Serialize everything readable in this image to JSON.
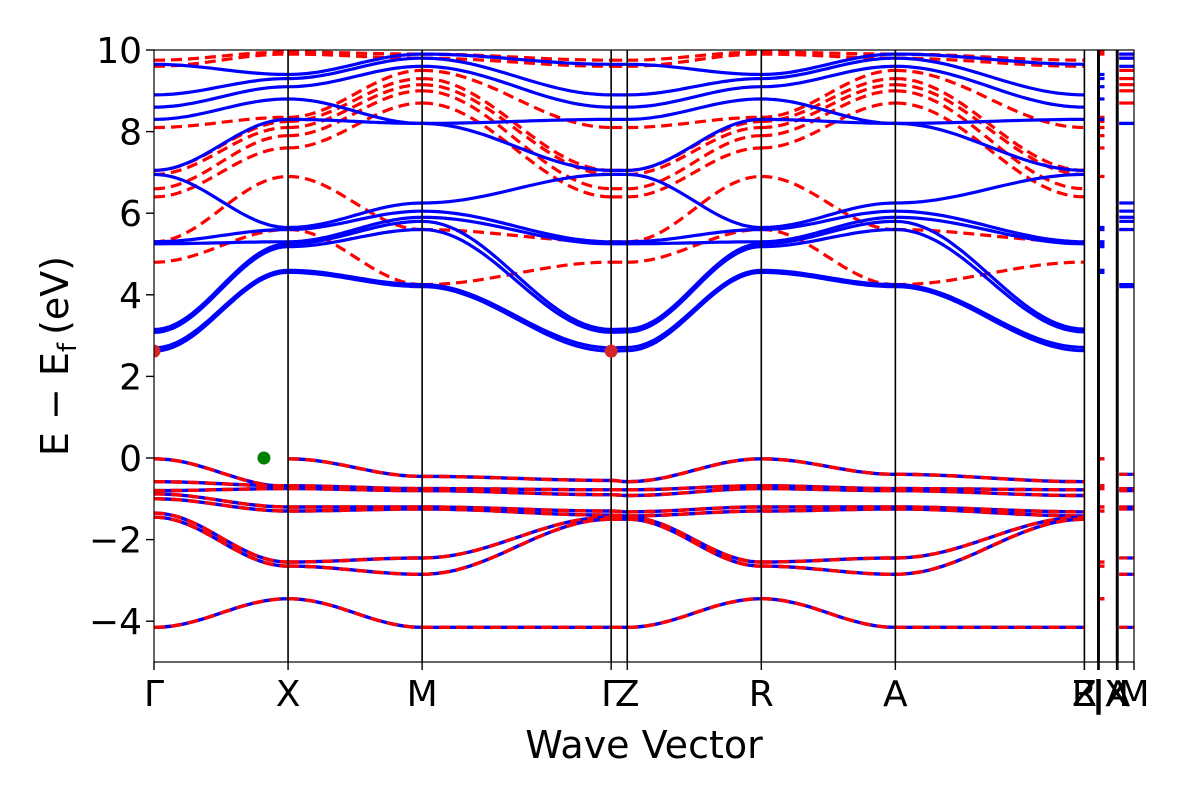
{
  "chart_data": {
    "type": "line",
    "title": "",
    "xlabel": "Wave Vector",
    "ylabel": "E − E",
    "ylabel_sub": "f",
    "ylabel_unit": "(eV)",
    "ylim": [
      -5,
      10
    ],
    "yticks": [
      -4,
      -2,
      0,
      2,
      4,
      6,
      8,
      10
    ],
    "ytick_labels": [
      "−4",
      "−2",
      "0",
      "2",
      "4",
      "6",
      "8",
      "10"
    ],
    "xlim": [
      0,
      7.31
    ],
    "kpath_ticks": [
      {
        "label": "Γ",
        "x": 0
      },
      {
        "label": "X",
        "x": 1.0
      },
      {
        "label": "M",
        "x": 2.0
      },
      {
        "label": "Γ",
        "x": 3.41
      },
      {
        "label": "Z",
        "x": 3.53
      },
      {
        "label": "R",
        "x": 4.53
      },
      {
        "label": "A",
        "x": 5.53
      },
      {
        "label": "Z",
        "x": 6.94
      },
      {
        "label": "R",
        "x": 6.94
      },
      {
        "label": "|",
        "x": 7.04
      },
      {
        "label": "|",
        "x": 7.05
      },
      {
        "label": "X",
        "x": 7.18
      },
      {
        "label": "A",
        "x": 7.19
      },
      {
        "label": "M",
        "x": 7.31
      }
    ],
    "line_colors": {
      "spin_up": "#0000ff",
      "spin_down": "#ff0000"
    },
    "markers": [
      {
        "x": 0.82,
        "y": 0.0,
        "color": "#008000"
      },
      {
        "x": 0.0,
        "y": 2.62,
        "color": "#d62728"
      },
      {
        "x": 3.41,
        "y": 2.62,
        "color": "#d62728"
      }
    ],
    "segments": [
      {
        "x0": 0,
        "x1": 1.0,
        "valence": [
          [
            -0.02,
            -0.7
          ],
          [
            -0.58,
            -0.68
          ],
          [
            -0.8,
            -0.75
          ],
          [
            -0.88,
            -1.2
          ],
          [
            -1.0,
            -1.3
          ],
          [
            -1.35,
            -2.55
          ],
          [
            -1.45,
            -2.65
          ],
          [
            -4.15,
            -3.45
          ]
        ],
        "cond_up": [
          [
            2.62,
            4.55
          ],
          [
            2.7,
            4.6
          ],
          [
            3.08,
            5.18
          ],
          [
            3.15,
            5.25
          ],
          [
            5.25,
            5.3
          ],
          [
            5.3,
            5.6
          ],
          [
            6.95,
            5.65
          ],
          [
            7.05,
            8.3
          ],
          [
            8.3,
            8.8
          ],
          [
            8.6,
            9.1
          ],
          [
            8.9,
            9.3
          ],
          [
            9.65,
            9.4
          ]
        ],
        "cond_dn": [
          [
            4.8,
            5.6
          ],
          [
            5.3,
            6.9
          ],
          [
            6.4,
            7.6
          ],
          [
            6.6,
            7.9
          ],
          [
            6.95,
            8.1
          ],
          [
            7.05,
            8.25
          ],
          [
            8.1,
            8.35
          ],
          [
            9.6,
            9.9
          ],
          [
            9.75,
            9.95
          ]
        ]
      },
      {
        "x0": 1.0,
        "x1": 2.0,
        "valence": [
          [
            -0.02,
            -0.45
          ],
          [
            -0.68,
            -0.75
          ],
          [
            -0.75,
            -0.8
          ],
          [
            -1.2,
            -1.2
          ],
          [
            -1.3,
            -1.25
          ],
          [
            -2.55,
            -2.45
          ],
          [
            -2.65,
            -2.85
          ],
          [
            -3.45,
            -4.15
          ]
        ],
        "cond_up": [
          [
            4.55,
            4.2
          ],
          [
            4.6,
            4.25
          ],
          [
            5.18,
            5.6
          ],
          [
            5.25,
            5.8
          ],
          [
            5.3,
            5.9
          ],
          [
            5.6,
            6.05
          ],
          [
            5.65,
            6.25
          ],
          [
            8.3,
            8.2
          ],
          [
            8.8,
            8.2
          ],
          [
            9.1,
            9.6
          ],
          [
            9.3,
            9.8
          ],
          [
            9.4,
            9.9
          ]
        ],
        "cond_dn": [
          [
            5.6,
            4.25
          ],
          [
            6.9,
            5.6
          ],
          [
            7.6,
            8.7
          ],
          [
            7.9,
            9.0
          ],
          [
            8.1,
            9.15
          ],
          [
            8.25,
            9.3
          ],
          [
            8.35,
            9.5
          ],
          [
            9.9,
            9.8
          ],
          [
            9.95,
            9.9
          ]
        ]
      },
      {
        "x0": 2.0,
        "x1": 3.41,
        "valence": [
          [
            -0.45,
            -0.55
          ],
          [
            -0.75,
            -0.78
          ],
          [
            -0.8,
            -0.9
          ],
          [
            -1.2,
            -1.3
          ],
          [
            -1.25,
            -1.4
          ],
          [
            -2.45,
            -1.45
          ],
          [
            -2.85,
            -1.5
          ],
          [
            -4.15,
            -4.15
          ]
        ],
        "cond_up": [
          [
            4.2,
            2.62
          ],
          [
            4.25,
            2.7
          ],
          [
            5.6,
            3.08
          ],
          [
            5.8,
            3.15
          ],
          [
            5.9,
            5.25
          ],
          [
            6.05,
            5.3
          ],
          [
            6.25,
            6.95
          ],
          [
            8.2,
            7.05
          ],
          [
            8.2,
            8.3
          ],
          [
            9.6,
            8.6
          ],
          [
            9.8,
            8.9
          ],
          [
            9.9,
            9.65
          ]
        ],
        "cond_dn": [
          [
            4.25,
            4.8
          ],
          [
            5.6,
            5.3
          ],
          [
            8.7,
            6.4
          ],
          [
            9.0,
            6.6
          ],
          [
            9.15,
            6.95
          ],
          [
            9.3,
            7.05
          ],
          [
            9.5,
            8.1
          ],
          [
            9.8,
            9.6
          ],
          [
            9.9,
            9.75
          ]
        ]
      },
      {
        "x0": 3.41,
        "x1": 3.53,
        "valence": [
          [
            -0.55,
            -0.58
          ],
          [
            -0.78,
            -0.78
          ],
          [
            -0.9,
            -0.92
          ],
          [
            -1.3,
            -1.32
          ],
          [
            -1.4,
            -1.42
          ],
          [
            -1.45,
            -1.45
          ],
          [
            -1.5,
            -1.5
          ],
          [
            -4.15,
            -4.15
          ]
        ],
        "cond_up": [
          [
            2.62,
            2.63
          ],
          [
            2.7,
            2.71
          ],
          [
            3.08,
            3.09
          ],
          [
            3.15,
            3.16
          ],
          [
            5.25,
            5.25
          ],
          [
            5.3,
            5.3
          ],
          [
            6.95,
            6.95
          ],
          [
            7.05,
            7.05
          ],
          [
            8.3,
            8.3
          ],
          [
            8.6,
            8.6
          ],
          [
            8.9,
            8.9
          ],
          [
            9.65,
            9.65
          ]
        ],
        "cond_dn": [
          [
            4.8,
            4.8
          ],
          [
            5.3,
            5.3
          ],
          [
            6.4,
            6.4
          ],
          [
            6.6,
            6.6
          ],
          [
            6.95,
            6.95
          ],
          [
            7.05,
            7.05
          ],
          [
            8.1,
            8.1
          ],
          [
            9.6,
            9.6
          ],
          [
            9.75,
            9.75
          ]
        ]
      },
      {
        "x0": 3.53,
        "x1": 4.53,
        "valence": [
          [
            -0.58,
            -0.02
          ],
          [
            -0.78,
            -0.68
          ],
          [
            -0.92,
            -0.75
          ],
          [
            -1.32,
            -1.2
          ],
          [
            -1.42,
            -1.3
          ],
          [
            -1.45,
            -2.55
          ],
          [
            -1.5,
            -2.65
          ],
          [
            -4.15,
            -3.45
          ]
        ],
        "cond_up": [
          [
            2.63,
            4.55
          ],
          [
            2.71,
            4.6
          ],
          [
            3.09,
            5.18
          ],
          [
            3.16,
            5.25
          ],
          [
            5.25,
            5.3
          ],
          [
            5.3,
            5.6
          ],
          [
            6.95,
            5.65
          ],
          [
            7.05,
            8.3
          ],
          [
            8.3,
            8.8
          ],
          [
            8.6,
            9.1
          ],
          [
            8.9,
            9.3
          ],
          [
            9.65,
            9.4
          ]
        ],
        "cond_dn": [
          [
            4.8,
            5.6
          ],
          [
            5.3,
            6.9
          ],
          [
            6.4,
            7.6
          ],
          [
            6.6,
            7.9
          ],
          [
            6.95,
            8.1
          ],
          [
            7.05,
            8.25
          ],
          [
            8.1,
            8.35
          ],
          [
            9.6,
            9.9
          ],
          [
            9.75,
            9.95
          ]
        ]
      },
      {
        "x0": 4.53,
        "x1": 5.53,
        "valence": [
          [
            -0.02,
            -0.4
          ],
          [
            -0.68,
            -0.75
          ],
          [
            -0.75,
            -0.8
          ],
          [
            -1.2,
            -1.2
          ],
          [
            -1.3,
            -1.25
          ],
          [
            -2.55,
            -2.45
          ],
          [
            -2.65,
            -2.85
          ],
          [
            -3.45,
            -4.15
          ]
        ],
        "cond_up": [
          [
            4.55,
            4.2
          ],
          [
            4.6,
            4.25
          ],
          [
            5.18,
            5.6
          ],
          [
            5.25,
            5.8
          ],
          [
            5.3,
            5.9
          ],
          [
            5.6,
            6.05
          ],
          [
            5.65,
            6.25
          ],
          [
            8.3,
            8.2
          ],
          [
            8.8,
            8.2
          ],
          [
            9.1,
            9.6
          ],
          [
            9.3,
            9.8
          ],
          [
            9.4,
            9.9
          ]
        ],
        "cond_dn": [
          [
            5.6,
            4.25
          ],
          [
            6.9,
            5.6
          ],
          [
            7.6,
            8.7
          ],
          [
            7.9,
            9.0
          ],
          [
            8.1,
            9.15
          ],
          [
            8.25,
            9.3
          ],
          [
            8.35,
            9.5
          ],
          [
            9.9,
            9.8
          ],
          [
            9.95,
            9.9
          ]
        ]
      },
      {
        "x0": 5.53,
        "x1": 6.94,
        "valence": [
          [
            -0.4,
            -0.58
          ],
          [
            -0.75,
            -0.78
          ],
          [
            -0.8,
            -0.92
          ],
          [
            -1.2,
            -1.32
          ],
          [
            -1.25,
            -1.42
          ],
          [
            -2.45,
            -1.45
          ],
          [
            -2.85,
            -1.5
          ],
          [
            -4.15,
            -4.15
          ]
        ],
        "cond_up": [
          [
            4.2,
            2.63
          ],
          [
            4.25,
            2.71
          ],
          [
            5.6,
            3.09
          ],
          [
            5.8,
            3.16
          ],
          [
            5.9,
            5.25
          ],
          [
            6.05,
            5.3
          ],
          [
            6.25,
            6.95
          ],
          [
            8.2,
            7.05
          ],
          [
            8.2,
            8.3
          ],
          [
            9.6,
            8.6
          ],
          [
            9.8,
            8.9
          ],
          [
            9.9,
            9.65
          ]
        ],
        "cond_dn": [
          [
            4.25,
            4.8
          ],
          [
            5.6,
            5.3
          ],
          [
            8.7,
            6.4
          ],
          [
            9.0,
            6.6
          ],
          [
            9.15,
            6.95
          ],
          [
            9.3,
            7.05
          ],
          [
            9.5,
            8.1
          ],
          [
            9.8,
            9.6
          ],
          [
            9.9,
            9.75
          ]
        ]
      }
    ],
    "flat_segments": [
      {
        "x0": 7.04,
        "x1": 7.09,
        "valence": [
          -0.02,
          -0.68,
          -0.75,
          -1.2,
          -1.3,
          -2.55,
          -2.65,
          -3.45
        ],
        "cond_up": [
          4.55,
          4.6,
          5.18,
          5.25,
          5.3,
          5.6,
          5.65,
          8.3,
          8.8,
          9.1,
          9.3,
          9.4
        ],
        "cond_dn": [
          5.6,
          6.9,
          7.6,
          7.9,
          8.1,
          8.25,
          8.35,
          9.9,
          9.95
        ]
      },
      {
        "x0": 7.2,
        "x1": 7.31,
        "valence": [
          -0.4,
          -0.75,
          -0.8,
          -1.2,
          -1.25,
          -2.45,
          -2.85,
          -4.15
        ],
        "cond_up": [
          4.2,
          4.25,
          5.6,
          5.8,
          5.9,
          6.05,
          6.25,
          8.2,
          8.2,
          9.6,
          9.8,
          9.9
        ],
        "cond_dn": [
          4.25,
          5.6,
          8.7,
          9.0,
          9.15,
          9.3,
          9.5,
          9.8,
          9.9
        ]
      }
    ]
  }
}
